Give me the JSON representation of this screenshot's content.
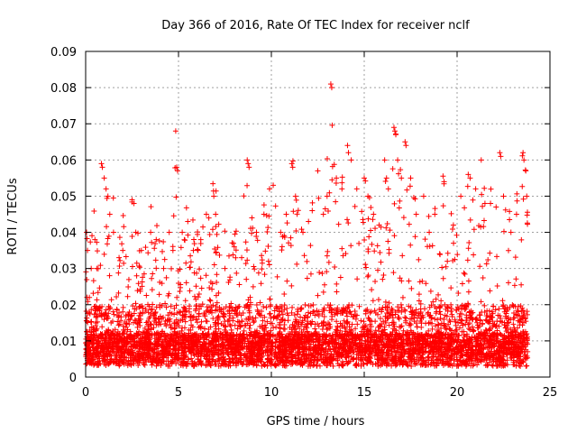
{
  "chart_data": {
    "type": "scatter",
    "title": "Day 366 of 2016, Rate Of TEC Index for receiver nclf",
    "xlabel": "GPS time / hours",
    "ylabel": "ROTI / TECUs",
    "xlim": [
      0,
      25
    ],
    "ylim": [
      0,
      0.09
    ],
    "xticks": [
      0,
      5,
      10,
      15,
      20,
      25
    ],
    "yticks": [
      0,
      0.01,
      0.02,
      0.03,
      0.04,
      0.05,
      0.06,
      0.07,
      0.08,
      0.09
    ],
    "xtick_labels": [
      "0",
      "5",
      "10",
      "15",
      "20",
      "25"
    ],
    "ytick_labels": [
      "0",
      "0.01",
      "0.02",
      "0.03",
      "0.04",
      "0.05",
      "0.06",
      "0.07",
      "0.08",
      "0.09"
    ],
    "grid": true,
    "marker": "+",
    "color": "#ff0000",
    "series": [
      {
        "name": "ROTI",
        "points": [
          [
            0.05,
            0.04
          ],
          [
            0.1,
            0.035
          ],
          [
            0.2,
            0.022
          ],
          [
            0.3,
            0.03
          ],
          [
            0.5,
            0.038
          ],
          [
            0.6,
            0.03
          ],
          [
            0.85,
            0.059
          ],
          [
            0.9,
            0.058
          ],
          [
            1.0,
            0.055
          ],
          [
            1.1,
            0.052
          ],
          [
            1.2,
            0.05
          ],
          [
            1.3,
            0.045
          ],
          [
            1.5,
            0.04
          ],
          [
            1.8,
            0.033
          ],
          [
            2.0,
            0.035
          ],
          [
            2.5,
            0.049
          ],
          [
            2.6,
            0.048
          ],
          [
            2.7,
            0.04
          ],
          [
            3.0,
            0.035
          ],
          [
            3.5,
            0.04
          ],
          [
            3.8,
            0.038
          ],
          [
            4.2,
            0.03
          ],
          [
            4.5,
            0.04
          ],
          [
            4.7,
            0.035
          ],
          [
            4.85,
            0.068
          ],
          [
            4.9,
            0.058
          ],
          [
            4.95,
            0.057
          ],
          [
            5.2,
            0.04
          ],
          [
            5.5,
            0.043
          ],
          [
            5.8,
            0.035
          ],
          [
            6.2,
            0.038
          ],
          [
            6.5,
            0.045
          ],
          [
            6.9,
            0.05
          ],
          [
            7.0,
            0.045
          ],
          [
            7.5,
            0.03
          ],
          [
            8.0,
            0.036
          ],
          [
            8.4,
            0.033
          ],
          [
            8.7,
            0.06
          ],
          [
            8.75,
            0.059
          ],
          [
            8.8,
            0.058
          ],
          [
            9.2,
            0.04
          ],
          [
            9.6,
            0.045
          ],
          [
            9.9,
            0.052
          ],
          [
            10.1,
            0.053
          ],
          [
            10.5,
            0.04
          ],
          [
            10.8,
            0.045
          ],
          [
            11.1,
            0.059
          ],
          [
            11.15,
            0.058
          ],
          [
            11.3,
            0.05
          ],
          [
            11.7,
            0.04
          ],
          [
            12.0,
            0.043
          ],
          [
            12.2,
            0.046
          ],
          [
            12.5,
            0.057
          ],
          [
            12.8,
            0.045
          ],
          [
            13.0,
            0.05
          ],
          [
            13.2,
            0.081
          ],
          [
            13.25,
            0.08
          ],
          [
            13.5,
            0.055
          ],
          [
            13.8,
            0.052
          ],
          [
            14.1,
            0.064
          ],
          [
            14.15,
            0.062
          ],
          [
            14.3,
            0.06
          ],
          [
            14.6,
            0.052
          ],
          [
            15.0,
            0.055
          ],
          [
            15.2,
            0.05
          ],
          [
            15.5,
            0.045
          ],
          [
            15.8,
            0.042
          ],
          [
            16.1,
            0.06
          ],
          [
            16.2,
            0.055
          ],
          [
            16.3,
            0.052
          ],
          [
            16.6,
            0.069
          ],
          [
            16.65,
            0.068
          ],
          [
            16.7,
            0.067
          ],
          [
            16.8,
            0.06
          ],
          [
            17.0,
            0.055
          ],
          [
            17.2,
            0.065
          ],
          [
            17.25,
            0.064
          ],
          [
            17.5,
            0.055
          ],
          [
            17.8,
            0.045
          ],
          [
            18.2,
            0.05
          ],
          [
            18.5,
            0.04
          ],
          [
            18.8,
            0.045
          ],
          [
            19.3,
            0.054
          ],
          [
            19.8,
            0.042
          ],
          [
            20.2,
            0.05
          ],
          [
            20.6,
            0.056
          ],
          [
            20.7,
            0.055
          ],
          [
            21.0,
            0.052
          ],
          [
            21.3,
            0.06
          ],
          [
            21.5,
            0.048
          ],
          [
            21.8,
            0.048
          ],
          [
            22.1,
            0.047
          ],
          [
            22.3,
            0.062
          ],
          [
            22.35,
            0.061
          ],
          [
            22.5,
            0.05
          ],
          [
            22.9,
            0.04
          ],
          [
            23.2,
            0.045
          ],
          [
            23.55,
            0.062
          ],
          [
            23.6,
            0.06
          ],
          [
            23.7,
            0.057
          ],
          [
            23.75,
            0.05
          ]
        ]
      }
    ]
  }
}
